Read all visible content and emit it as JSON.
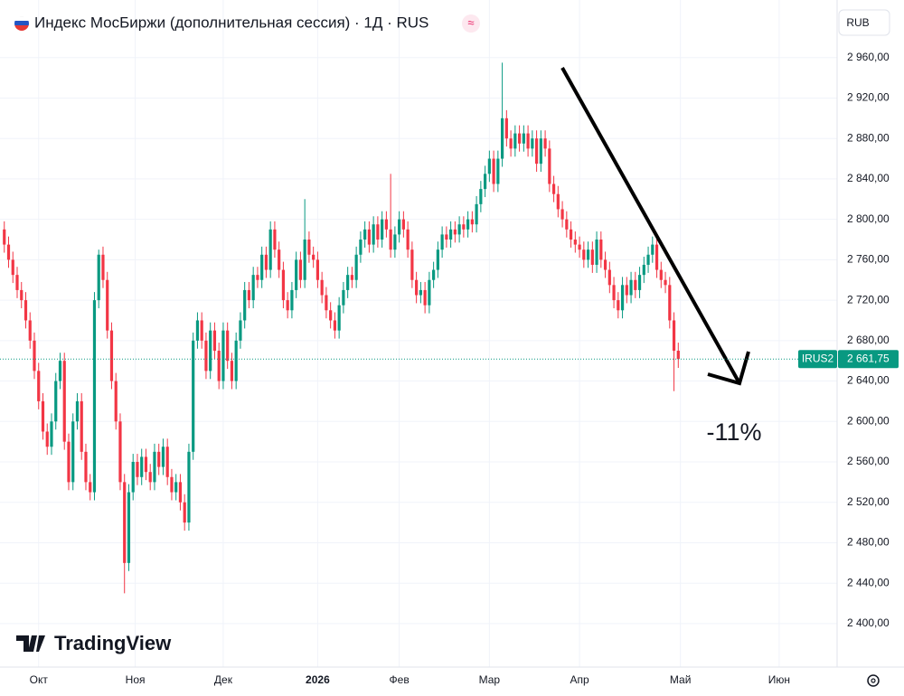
{
  "chart_data": {
    "type": "candlestick",
    "title": "Индекс МосБиржи (дополнительная сессия) · 1Д · RUS",
    "currency": "RUB",
    "brand": "TradingView",
    "annotation": "-11%",
    "symbol": "IRUS2",
    "last_price": {
      "value": 2661.75,
      "label": "2 661,75"
    },
    "up_color": "#089981",
    "down_color": "#f23645",
    "xlim": [
      -1,
      194
    ],
    "xticks": [
      {
        "value": 8,
        "label": "Окт"
      },
      {
        "value": 30.5,
        "label": "Ноя"
      },
      {
        "value": 51,
        "label": "Дек"
      },
      {
        "value": 73,
        "label": "2026"
      },
      {
        "value": 92,
        "label": "Фев"
      },
      {
        "value": 113,
        "label": "Мар"
      },
      {
        "value": 134,
        "label": "Апр"
      },
      {
        "value": 157.5,
        "label": "Май"
      },
      {
        "value": 180.5,
        "label": "Июн"
      }
    ],
    "ylim": [
      2357,
      3017
    ],
    "yticks": [
      {
        "value": 2400,
        "label": "2 400,00"
      },
      {
        "value": 2440,
        "label": "2 440,00"
      },
      {
        "value": 2480,
        "label": "2 480,00"
      },
      {
        "value": 2520,
        "label": "2 520,00"
      },
      {
        "value": 2560,
        "label": "2 560,00"
      },
      {
        "value": 2600,
        "label": "2 600,00"
      },
      {
        "value": 2640,
        "label": "2 640,00"
      },
      {
        "value": 2680,
        "label": "2 680,00"
      },
      {
        "value": 2720,
        "label": "2 720,00"
      },
      {
        "value": 2760,
        "label": "2 760,00"
      },
      {
        "value": 2800,
        "label": "2 800,00"
      },
      {
        "value": 2840,
        "label": "2 840,00"
      },
      {
        "value": 2880,
        "label": "2 880,00"
      },
      {
        "value": 2920,
        "label": "2 920,00"
      },
      {
        "value": 2960,
        "label": "2 960,00"
      }
    ],
    "grid": true,
    "open": [
      2790,
      2775,
      2760,
      2745,
      2730,
      2720,
      2700,
      2680,
      2650,
      2620,
      2590,
      2575,
      2600,
      2640,
      2660,
      2580,
      2540,
      2600,
      2620,
      2570,
      2540,
      2530,
      2720,
      2765,
      2740,
      2690,
      2640,
      2600,
      2540,
      2460,
      2530,
      2560,
      2545,
      2565,
      2550,
      2540,
      2570,
      2555,
      2575,
      2545,
      2530,
      2540,
      2520,
      2500,
      2570,
      2680,
      2700,
      2680,
      2650,
      2690,
      2670,
      2640,
      2690,
      2660,
      2640,
      2680,
      2700,
      2730,
      2720,
      2745,
      2740,
      2765,
      2750,
      2790,
      2770,
      2750,
      2720,
      2710,
      2730,
      2760,
      2740,
      2780,
      2765,
      2760,
      2740,
      2725,
      2710,
      2700,
      2690,
      2715,
      2730,
      2745,
      2740,
      2765,
      2780,
      2790,
      2775,
      2795,
      2780,
      2800,
      2790,
      2770,
      2785,
      2800,
      2790,
      2770,
      2740,
      2725,
      2730,
      2715,
      2740,
      2750,
      2770,
      2785,
      2780,
      2790,
      2785,
      2795,
      2790,
      2800,
      2795,
      2815,
      2830,
      2845,
      2860,
      2835,
      2860,
      2900,
      2880,
      2870,
      2885,
      2875,
      2885,
      2870,
      2880,
      2855,
      2880,
      2870,
      2835,
      2825,
      2810,
      2800,
      2790,
      2780,
      2775,
      2770,
      2760,
      2770,
      2755,
      2780,
      2760,
      2750,
      2735,
      2720,
      2710,
      2735,
      2725,
      2740,
      2730,
      2745,
      2755,
      2765,
      2775,
      2750,
      2740,
      2735,
      2700,
      2670
    ],
    "high": [
      2798,
      2783,
      2768,
      2753,
      2738,
      2728,
      2708,
      2688,
      2658,
      2628,
      2598,
      2608,
      2648,
      2668,
      2668,
      2588,
      2608,
      2628,
      2628,
      2578,
      2548,
      2728,
      2770,
      2773,
      2748,
      2698,
      2648,
      2608,
      2548,
      2538,
      2568,
      2568,
      2573,
      2573,
      2558,
      2578,
      2578,
      2583,
      2583,
      2553,
      2548,
      2548,
      2528,
      2578,
      2688,
      2708,
      2708,
      2688,
      2698,
      2698,
      2678,
      2698,
      2698,
      2668,
      2688,
      2708,
      2738,
      2738,
      2753,
      2753,
      2773,
      2773,
      2798,
      2798,
      2778,
      2758,
      2728,
      2738,
      2768,
      2768,
      2820,
      2788,
      2773,
      2768,
      2748,
      2733,
      2718,
      2708,
      2723,
      2738,
      2753,
      2753,
      2773,
      2788,
      2798,
      2798,
      2803,
      2803,
      2808,
      2808,
      2845,
      2793,
      2808,
      2808,
      2798,
      2778,
      2748,
      2738,
      2738,
      2748,
      2758,
      2778,
      2793,
      2793,
      2798,
      2798,
      2803,
      2803,
      2808,
      2808,
      2823,
      2838,
      2853,
      2868,
      2868,
      2868,
      2955,
      2908,
      2888,
      2893,
      2893,
      2893,
      2893,
      2888,
      2888,
      2888,
      2888,
      2878,
      2843,
      2833,
      2818,
      2808,
      2798,
      2788,
      2783,
      2778,
      2778,
      2778,
      2788,
      2788,
      2768,
      2758,
      2743,
      2728,
      2743,
      2743,
      2748,
      2748,
      2753,
      2763,
      2773,
      2783,
      2783,
      2758,
      2748,
      2743,
      2708,
      2678
    ],
    "low": [
      2767,
      2752,
      2737,
      2722,
      2712,
      2692,
      2672,
      2642,
      2612,
      2582,
      2567,
      2567,
      2592,
      2632,
      2572,
      2532,
      2532,
      2592,
      2562,
      2532,
      2522,
      2522,
      2712,
      2732,
      2682,
      2632,
      2592,
      2532,
      2430,
      2452,
      2522,
      2537,
      2537,
      2542,
      2532,
      2532,
      2547,
      2547,
      2537,
      2522,
      2522,
      2512,
      2492,
      2492,
      2562,
      2672,
      2672,
      2642,
      2642,
      2662,
      2632,
      2632,
      2652,
      2632,
      2632,
      2672,
      2692,
      2712,
      2712,
      2732,
      2732,
      2742,
      2742,
      2762,
      2742,
      2712,
      2702,
      2702,
      2722,
      2732,
      2732,
      2757,
      2752,
      2732,
      2717,
      2702,
      2692,
      2682,
      2682,
      2707,
      2722,
      2732,
      2732,
      2757,
      2772,
      2767,
      2767,
      2772,
      2772,
      2782,
      2762,
      2762,
      2777,
      2782,
      2762,
      2732,
      2717,
      2717,
      2707,
      2707,
      2732,
      2742,
      2762,
      2772,
      2772,
      2777,
      2777,
      2782,
      2782,
      2787,
      2787,
      2807,
      2822,
      2837,
      2827,
      2827,
      2852,
      2872,
      2862,
      2862,
      2867,
      2867,
      2862,
      2862,
      2847,
      2847,
      2862,
      2827,
      2817,
      2802,
      2792,
      2782,
      2772,
      2767,
      2762,
      2752,
      2752,
      2747,
      2747,
      2752,
      2742,
      2727,
      2712,
      2702,
      2702,
      2717,
      2717,
      2722,
      2722,
      2737,
      2747,
      2757,
      2742,
      2732,
      2727,
      2692,
      2630,
      2653
    ],
    "close": [
      2775,
      2760,
      2745,
      2730,
      2720,
      2700,
      2680,
      2650,
      2620,
      2590,
      2575,
      2600,
      2640,
      2660,
      2580,
      2540,
      2600,
      2620,
      2570,
      2540,
      2530,
      2720,
      2765,
      2740,
      2690,
      2640,
      2600,
      2540,
      2460,
      2530,
      2560,
      2545,
      2565,
      2550,
      2540,
      2570,
      2555,
      2575,
      2545,
      2530,
      2540,
      2520,
      2500,
      2570,
      2680,
      2700,
      2680,
      2650,
      2690,
      2670,
      2640,
      2690,
      2660,
      2640,
      2680,
      2700,
      2730,
      2720,
      2745,
      2740,
      2765,
      2750,
      2790,
      2770,
      2750,
      2720,
      2710,
      2730,
      2760,
      2740,
      2780,
      2765,
      2760,
      2740,
      2725,
      2710,
      2700,
      2690,
      2715,
      2730,
      2745,
      2740,
      2765,
      2780,
      2790,
      2775,
      2795,
      2780,
      2800,
      2790,
      2770,
      2785,
      2800,
      2790,
      2770,
      2740,
      2725,
      2730,
      2715,
      2740,
      2750,
      2770,
      2785,
      2780,
      2790,
      2785,
      2795,
      2790,
      2800,
      2795,
      2815,
      2830,
      2845,
      2860,
      2835,
      2860,
      2900,
      2880,
      2870,
      2885,
      2875,
      2885,
      2870,
      2880,
      2855,
      2880,
      2870,
      2835,
      2825,
      2810,
      2800,
      2790,
      2780,
      2775,
      2770,
      2760,
      2770,
      2755,
      2780,
      2760,
      2750,
      2735,
      2720,
      2710,
      2735,
      2725,
      2740,
      2730,
      2745,
      2755,
      2765,
      2775,
      2750,
      2740,
      2735,
      2700,
      2670,
      2661.75
    ]
  }
}
